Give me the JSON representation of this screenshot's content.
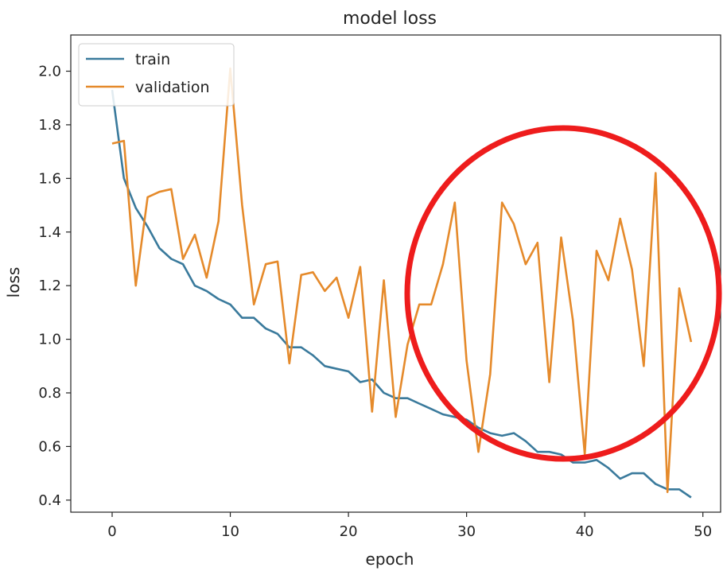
{
  "chart_data": {
    "type": "line",
    "title": "model loss",
    "xlabel": "epoch",
    "ylabel": "loss",
    "xlim": [
      -3.5,
      51.5
    ],
    "ylim": [
      0.355,
      2.135
    ],
    "xticks": [
      0,
      10,
      20,
      30,
      40,
      50
    ],
    "yticks": [
      0.4,
      0.6,
      0.8,
      1.0,
      1.2,
      1.4,
      1.6,
      1.8,
      2.0
    ],
    "ytick_labels": [
      "0.4",
      "0.6",
      "0.8",
      "1.0",
      "1.2",
      "1.4",
      "1.6",
      "1.8",
      "2.0"
    ],
    "grid": false,
    "legend_position": "top-left",
    "x": [
      0,
      1,
      2,
      3,
      4,
      5,
      6,
      7,
      8,
      9,
      10,
      11,
      12,
      13,
      14,
      15,
      16,
      17,
      18,
      19,
      20,
      21,
      22,
      23,
      24,
      25,
      26,
      27,
      28,
      29,
      30,
      31,
      32,
      33,
      34,
      35,
      36,
      37,
      38,
      39,
      40,
      41,
      42,
      43,
      44,
      45,
      46,
      47,
      48,
      49
    ],
    "series": [
      {
        "name": "train",
        "color": "#3a7a9c",
        "values": [
          1.93,
          1.6,
          1.49,
          1.42,
          1.34,
          1.3,
          1.28,
          1.2,
          1.18,
          1.15,
          1.13,
          1.08,
          1.08,
          1.04,
          1.02,
          0.97,
          0.97,
          0.94,
          0.9,
          0.89,
          0.88,
          0.84,
          0.85,
          0.8,
          0.78,
          0.78,
          0.76,
          0.74,
          0.72,
          0.71,
          0.7,
          0.67,
          0.65,
          0.64,
          0.65,
          0.62,
          0.58,
          0.58,
          0.57,
          0.54,
          0.54,
          0.55,
          0.52,
          0.48,
          0.5,
          0.5,
          0.46,
          0.44,
          0.44,
          0.41
        ]
      },
      {
        "name": "validation",
        "color": "#e58a2b",
        "values": [
          1.73,
          1.74,
          1.2,
          1.53,
          1.55,
          1.56,
          1.3,
          1.39,
          1.23,
          1.44,
          2.01,
          1.5,
          1.13,
          1.28,
          1.29,
          0.91,
          1.24,
          1.25,
          1.18,
          1.23,
          1.08,
          1.27,
          0.73,
          1.22,
          0.71,
          0.98,
          1.13,
          1.13,
          1.28,
          1.51,
          0.92,
          0.58,
          0.87,
          1.51,
          1.43,
          1.28,
          1.36,
          0.84,
          1.38,
          1.07,
          0.57,
          1.33,
          1.22,
          1.45,
          1.26,
          0.9,
          1.62,
          0.43,
          1.19,
          0.99
        ]
      }
    ]
  },
  "annotation": {
    "shape": "ellipse",
    "color": "#ee1c1c"
  }
}
